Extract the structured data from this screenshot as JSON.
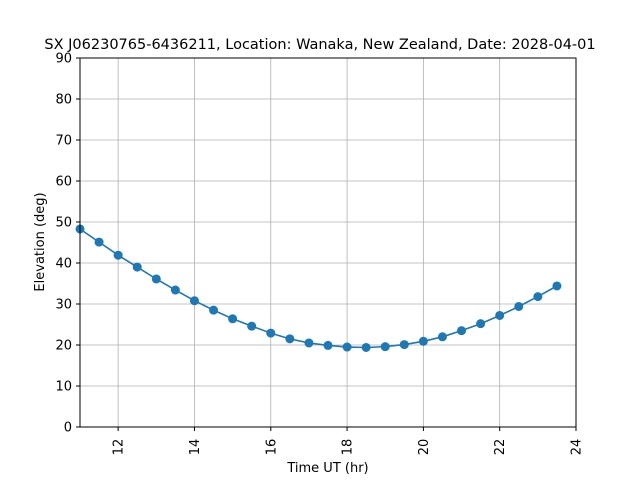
{
  "chart_data": {
    "type": "line",
    "title": "SX J06230765-6436211,  Location: Wanaka, New Zealand, Date: 2028-04-01",
    "xlabel": "Time UT (hr)",
    "ylabel": "Elevation (deg)",
    "xlim": [
      11,
      24
    ],
    "ylim": [
      0,
      90
    ],
    "x_ticks": [
      12,
      14,
      16,
      18,
      20,
      22,
      24
    ],
    "y_ticks": [
      0,
      10,
      20,
      30,
      40,
      50,
      60,
      70,
      80,
      90
    ],
    "grid": true,
    "series": [
      {
        "name": "elevation",
        "color": "#1f77b4",
        "x": [
          11.0,
          11.5,
          12.0,
          12.5,
          13.0,
          13.5,
          14.0,
          14.5,
          15.0,
          15.5,
          16.0,
          16.5,
          17.0,
          17.5,
          18.0,
          18.5,
          19.0,
          19.5,
          20.0,
          20.5,
          21.0,
          21.5,
          22.0,
          22.5,
          23.0,
          23.5
        ],
        "values": [
          48.3,
          45.1,
          41.9,
          39.0,
          36.1,
          33.4,
          30.8,
          28.5,
          26.4,
          24.6,
          22.9,
          21.5,
          20.5,
          19.9,
          19.5,
          19.4,
          19.6,
          20.1,
          20.9,
          22.0,
          23.5,
          25.2,
          27.2,
          29.4,
          31.8,
          34.4
        ]
      }
    ]
  }
}
